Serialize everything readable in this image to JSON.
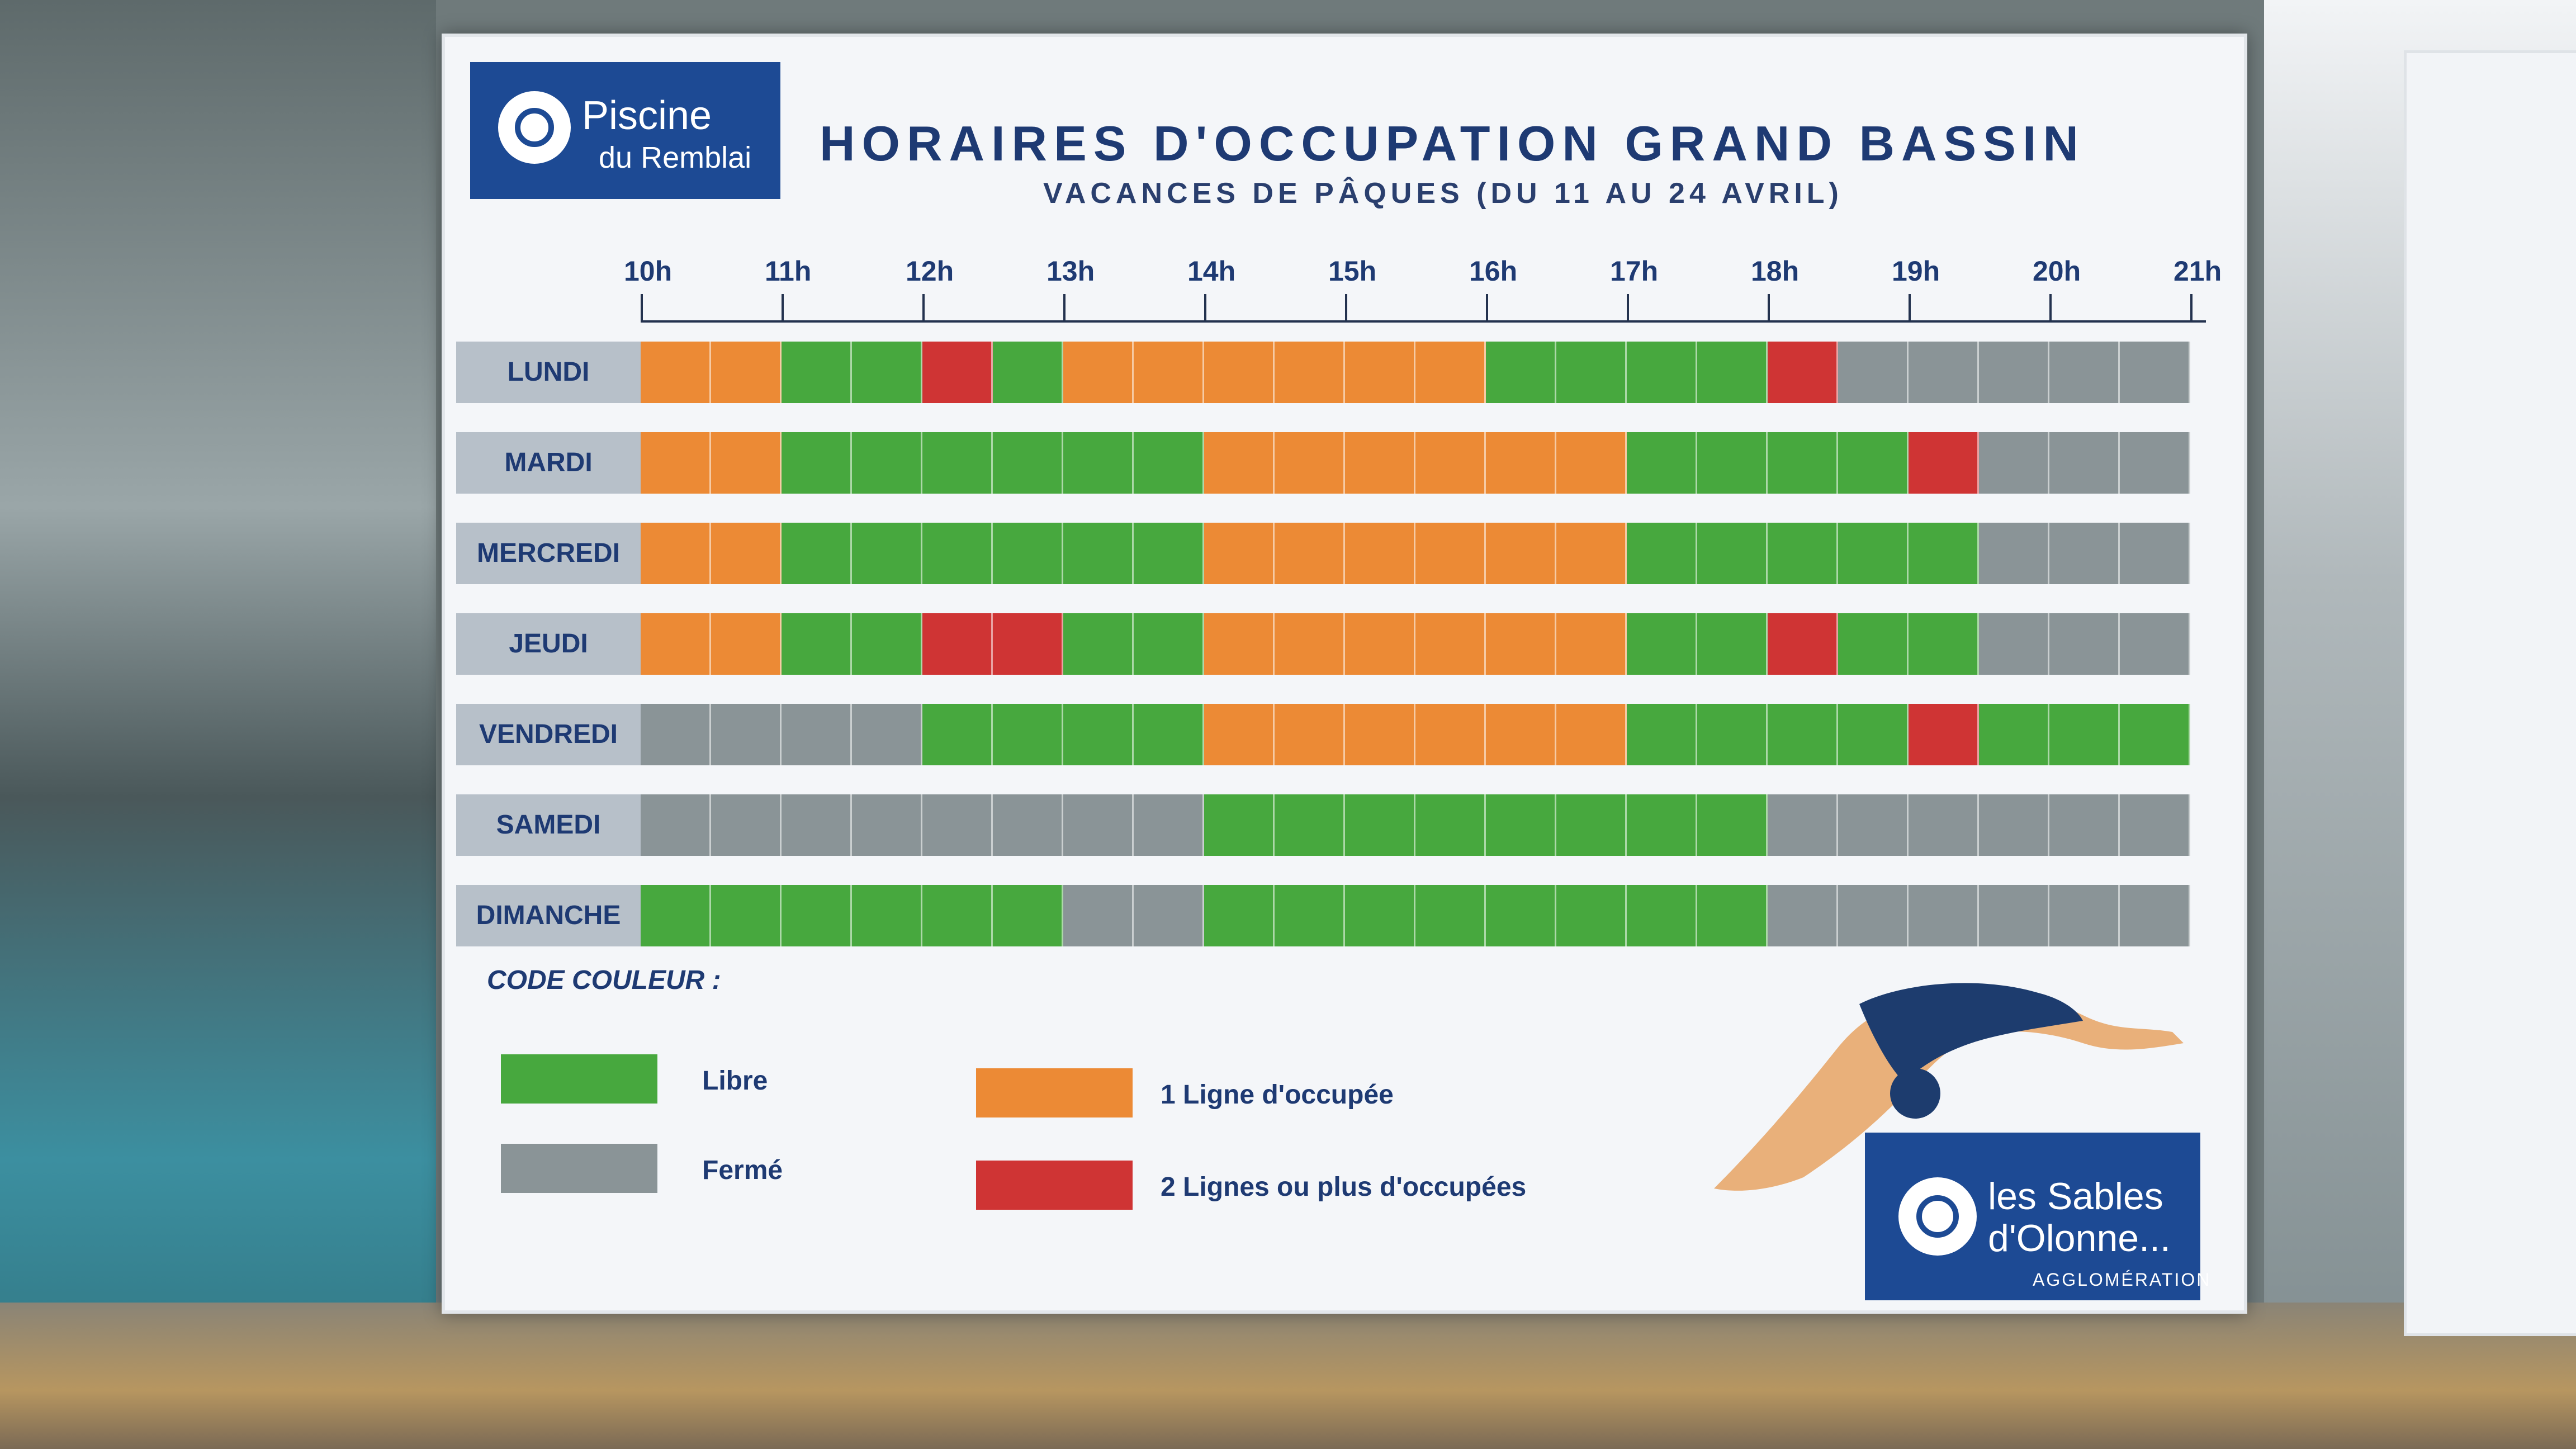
{
  "poster": {
    "logo_line1": "Piscine",
    "logo_line2": "du Remblai",
    "title": "HORAIRES D'OCCUPATION GRAND BASSIN",
    "subtitle": "VACANCES DE PÂQUES (DU 11 AU 24 AVRIL)",
    "hours": [
      "10h",
      "11h",
      "12h",
      "13h",
      "14h",
      "15h",
      "16h",
      "17h",
      "18h",
      "19h",
      "20h",
      "21h"
    ],
    "days": [
      {
        "label": "LUNDI",
        "slots": [
          "occ1",
          "occ1",
          "libre",
          "libre",
          "occ2",
          "libre",
          "occ1",
          "occ1",
          "occ1",
          "occ1",
          "occ1",
          "occ1",
          "libre",
          "libre",
          "libre",
          "libre",
          "occ2",
          "ferme",
          "ferme",
          "ferme",
          "ferme",
          "ferme"
        ]
      },
      {
        "label": "MARDI",
        "slots": [
          "occ1",
          "occ1",
          "libre",
          "libre",
          "libre",
          "libre",
          "libre",
          "libre",
          "occ1",
          "occ1",
          "occ1",
          "occ1",
          "occ1",
          "occ1",
          "libre",
          "libre",
          "libre",
          "libre",
          "occ2",
          "ferme",
          "ferme",
          "ferme"
        ]
      },
      {
        "label": "MERCREDI",
        "slots": [
          "occ1",
          "occ1",
          "libre",
          "libre",
          "libre",
          "libre",
          "libre",
          "libre",
          "occ1",
          "occ1",
          "occ1",
          "occ1",
          "occ1",
          "occ1",
          "libre",
          "libre",
          "libre",
          "libre",
          "libre",
          "ferme",
          "ferme",
          "ferme"
        ]
      },
      {
        "label": "JEUDI",
        "slots": [
          "occ1",
          "occ1",
          "libre",
          "libre",
          "occ2",
          "occ2",
          "libre",
          "libre",
          "occ1",
          "occ1",
          "occ1",
          "occ1",
          "occ1",
          "occ1",
          "libre",
          "libre",
          "occ2",
          "libre",
          "libre",
          "ferme",
          "ferme",
          "ferme"
        ]
      },
      {
        "label": "VENDREDI",
        "slots": [
          "ferme",
          "ferme",
          "ferme",
          "ferme",
          "libre",
          "libre",
          "libre",
          "libre",
          "occ1",
          "occ1",
          "occ1",
          "occ1",
          "occ1",
          "occ1",
          "libre",
          "libre",
          "libre",
          "libre",
          "occ2",
          "libre",
          "libre",
          "libre"
        ]
      },
      {
        "label": "SAMEDI",
        "slots": [
          "ferme",
          "ferme",
          "ferme",
          "ferme",
          "ferme",
          "ferme",
          "ferme",
          "ferme",
          "libre",
          "libre",
          "libre",
          "libre",
          "libre",
          "libre",
          "libre",
          "libre",
          "ferme",
          "ferme",
          "ferme",
          "ferme",
          "ferme",
          "ferme"
        ]
      },
      {
        "label": "DIMANCHE",
        "slots": [
          "libre",
          "libre",
          "libre",
          "libre",
          "libre",
          "libre",
          "ferme",
          "ferme",
          "libre",
          "libre",
          "libre",
          "libre",
          "libre",
          "libre",
          "libre",
          "libre",
          "ferme",
          "ferme",
          "ferme",
          "ferme",
          "ferme",
          "ferme"
        ]
      }
    ],
    "colors": {
      "libre": "#47a83e",
      "ferme": "#8a9497",
      "occ1": "#ec8a35",
      "occ2": "#cf3434"
    },
    "legend": {
      "title": "CODE COULEUR :",
      "libre": "Libre",
      "ferme": "Fermé",
      "occ1": "1 Ligne d'occupée",
      "occ2": "2 Lignes ou plus d'occupées"
    },
    "brand": {
      "line1": "les Sables",
      "line2": "d'Olonne...",
      "line3": "AGGLOMÉRATION"
    }
  }
}
